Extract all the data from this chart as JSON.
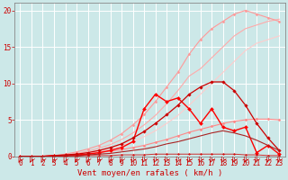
{
  "bg_color": "#cce8e8",
  "grid_color": "#ffffff",
  "xlabel": "Vent moyen/en rafales ( km/h )",
  "xlabel_color": "#cc0000",
  "xlabel_fontsize": 6.5,
  "tick_color": "#cc0000",
  "tick_fontsize": 5.5,
  "xlim": [
    -0.5,
    23.5
  ],
  "ylim": [
    0,
    21
  ],
  "yticks": [
    0,
    5,
    10,
    15,
    20
  ],
  "xticks": [
    0,
    1,
    2,
    3,
    4,
    5,
    6,
    7,
    8,
    9,
    10,
    11,
    12,
    13,
    14,
    15,
    16,
    17,
    18,
    19,
    20,
    21,
    22,
    23
  ],
  "lines": [
    {
      "x": [
        0,
        1,
        2,
        3,
        4,
        5,
        6,
        7,
        8,
        9,
        10,
        11,
        12,
        13,
        14,
        15,
        16,
        17,
        18,
        19,
        20,
        21,
        22,
        23
      ],
      "y": [
        0,
        0,
        0,
        0,
        0.1,
        0.2,
        0.4,
        0.7,
        1.0,
        1.4,
        2.0,
        2.7,
        3.5,
        4.5,
        5.6,
        7.0,
        8.5,
        10.0,
        11.5,
        13.0,
        14.5,
        15.5,
        16.0,
        16.5
      ],
      "color": "#ffcccc",
      "lw": 0.8,
      "marker": null,
      "alpha": 1.0
    },
    {
      "x": [
        0,
        1,
        2,
        3,
        4,
        5,
        6,
        7,
        8,
        9,
        10,
        11,
        12,
        13,
        14,
        15,
        16,
        17,
        18,
        19,
        20,
        21,
        22,
        23
      ],
      "y": [
        0,
        0,
        0,
        0,
        0.2,
        0.4,
        0.7,
        1.1,
        1.6,
        2.3,
        3.2,
        4.3,
        5.6,
        7.2,
        9.0,
        11.0,
        12.0,
        13.5,
        15.0,
        16.5,
        17.5,
        18.0,
        18.5,
        18.8
      ],
      "color": "#ffaaaa",
      "lw": 0.8,
      "marker": null,
      "alpha": 1.0
    },
    {
      "x": [
        0,
        1,
        2,
        3,
        4,
        5,
        6,
        7,
        8,
        9,
        10,
        11,
        12,
        13,
        14,
        15,
        16,
        17,
        18,
        19,
        20,
        21,
        22,
        23
      ],
      "y": [
        0,
        0,
        0,
        0.1,
        0.3,
        0.6,
        1.0,
        1.5,
        2.2,
        3.1,
        4.3,
        5.7,
        7.5,
        9.5,
        11.5,
        14.0,
        16.0,
        17.5,
        18.5,
        19.5,
        20.0,
        19.5,
        19.0,
        18.5
      ],
      "color": "#ff9999",
      "lw": 0.8,
      "marker": "D",
      "markersize": 1.5,
      "alpha": 1.0
    },
    {
      "x": [
        0,
        1,
        2,
        3,
        4,
        5,
        6,
        7,
        8,
        9,
        10,
        11,
        12,
        13,
        14,
        15,
        16,
        17,
        18,
        19,
        20,
        21,
        22,
        23
      ],
      "y": [
        0,
        0,
        0,
        0,
        0.1,
        0.2,
        0.3,
        0.5,
        0.7,
        0.9,
        1.2,
        1.5,
        1.9,
        2.3,
        2.8,
        3.3,
        3.7,
        4.1,
        4.5,
        4.8,
        5.0,
        5.1,
        5.1,
        5.0
      ],
      "color": "#ff8888",
      "lw": 0.8,
      "marker": "D",
      "markersize": 1.5,
      "alpha": 1.0
    },
    {
      "x": [
        0,
        1,
        2,
        3,
        4,
        5,
        6,
        7,
        8,
        9,
        10,
        11,
        12,
        13,
        14,
        15,
        16,
        17,
        18,
        19,
        20,
        21,
        22,
        23
      ],
      "y": [
        0,
        0,
        0,
        0.1,
        0.1,
        0.2,
        0.3,
        0.5,
        0.8,
        1.2,
        2.0,
        6.5,
        8.5,
        7.5,
        8.0,
        6.5,
        4.5,
        6.5,
        4.0,
        3.5,
        4.0,
        0.5,
        1.5,
        0.3
      ],
      "color": "#ff0000",
      "lw": 1.0,
      "marker": "D",
      "markersize": 2.0,
      "alpha": 1.0
    },
    {
      "x": [
        0,
        1,
        2,
        3,
        4,
        5,
        6,
        7,
        8,
        9,
        10,
        11,
        12,
        13,
        14,
        15,
        16,
        17,
        18,
        19,
        20,
        21,
        22,
        23
      ],
      "y": [
        0,
        0,
        0,
        0.1,
        0.2,
        0.3,
        0.5,
        0.8,
        1.2,
        1.7,
        2.5,
        3.4,
        4.5,
        5.7,
        7.0,
        8.5,
        9.5,
        10.2,
        10.2,
        9.0,
        7.0,
        4.5,
        2.5,
        0.8
      ],
      "color": "#cc0000",
      "lw": 0.9,
      "marker": "D",
      "markersize": 1.8,
      "alpha": 1.0
    },
    {
      "x": [
        0,
        1,
        2,
        3,
        4,
        5,
        6,
        7,
        8,
        9,
        10,
        11,
        12,
        13,
        14,
        15,
        16,
        17,
        18,
        19,
        20,
        21,
        22,
        23
      ],
      "y": [
        0,
        0,
        0,
        0,
        0.1,
        0.1,
        0.2,
        0.3,
        0.4,
        0.6,
        0.8,
        1.0,
        1.3,
        1.7,
        2.0,
        2.4,
        2.8,
        3.2,
        3.5,
        3.2,
        2.8,
        2.2,
        1.5,
        0.8
      ],
      "color": "#aa2222",
      "lw": 0.8,
      "marker": null,
      "alpha": 1.0
    },
    {
      "x": [
        0,
        1,
        2,
        3,
        4,
        5,
        6,
        7,
        8,
        9,
        10,
        11,
        12,
        13,
        14,
        15,
        16,
        17,
        18,
        19,
        20,
        21,
        22,
        23
      ],
      "y": [
        0,
        0,
        0,
        0,
        0,
        0,
        0.1,
        0.1,
        0.1,
        0.2,
        0.2,
        0.2,
        0.3,
        0.3,
        0.3,
        0.3,
        0.3,
        0.3,
        0.3,
        0.3,
        0.2,
        0.2,
        0.1,
        0.1
      ],
      "color": "#cc0000",
      "lw": 0.7,
      "marker": "D",
      "markersize": 1.2,
      "alpha": 0.8
    }
  ],
  "spine_color": "#888888",
  "arrow_color": "#cc0000"
}
